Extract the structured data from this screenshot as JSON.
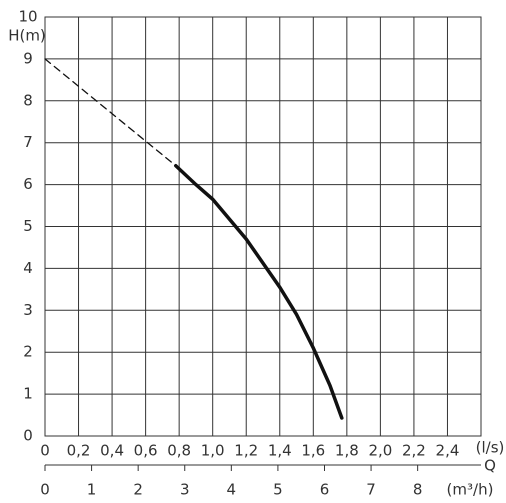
{
  "chart_data": {
    "type": "line",
    "y_label": "H(m)",
    "x_label": "(l/s)",
    "x2_name": "Q",
    "x2_label": "(m³/h)",
    "xlim": [
      0,
      2.6
    ],
    "xticks": [
      0,
      {
        "value": 0.2,
        "label": "0,2"
      },
      {
        "value": 0.4,
        "label": "0,4"
      },
      {
        "value": 0.6,
        "label": "0,6"
      },
      {
        "value": 0.8,
        "label": "0,8"
      },
      {
        "value": 1.0,
        "label": "1,0"
      },
      {
        "value": 1.2,
        "label": "1,2"
      },
      {
        "value": 1.4,
        "label": "1,4"
      },
      {
        "value": 1.6,
        "label": "1,6"
      },
      {
        "value": 1.8,
        "label": "1,8"
      },
      {
        "value": 2.0,
        "label": "2,0"
      },
      {
        "value": 2.2,
        "label": "2,2"
      },
      {
        "value": 2.4,
        "label": "2,4"
      }
    ],
    "x2lim": [
      0,
      9.36
    ],
    "x2ticks": [
      0,
      1,
      2,
      3,
      4,
      5,
      6,
      7,
      8
    ],
    "ylim": [
      0,
      10
    ],
    "yticks": [
      0,
      1,
      2,
      3,
      4,
      5,
      6,
      7,
      8,
      9,
      10
    ],
    "grid": true,
    "series": [
      {
        "color": "#111111",
        "style": "dashed",
        "x": [
          0,
          0.78
        ],
        "values": [
          9,
          6.45
        ]
      },
      {
        "color": "#111111",
        "style": "solid",
        "x": [
          0.78,
          0.9,
          1.0,
          1.2,
          1.4,
          1.5,
          1.6,
          1.7,
          1.77
        ],
        "values": [
          6.45,
          6.0,
          5.65,
          4.7,
          3.55,
          2.9,
          2.1,
          1.2,
          0.43
        ]
      }
    ]
  }
}
